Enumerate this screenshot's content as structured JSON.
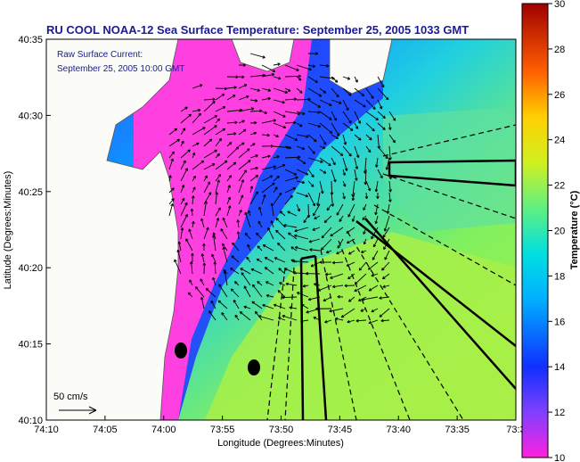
{
  "title": "RU COOL  NOAA-12  Sea Surface Temperature:  September 25, 2005 1033 GMT",
  "annotation": {
    "line1": "Raw Surface Current:",
    "line2": "September 25, 2005 10:00 GMT"
  },
  "scale": {
    "label": "50 cm/s"
  },
  "x_axis": {
    "label": "Longitude (Degrees:Minutes)",
    "ticks": [
      "74:10",
      "74:05",
      "74:00",
      "73:55",
      "73:50",
      "73:45",
      "73:40",
      "73:35",
      "73:3"
    ]
  },
  "y_axis": {
    "label": "Latitude (Degrees:Minutes)",
    "ticks": [
      "40:35",
      "40:30",
      "40:25",
      "40:20",
      "40:15",
      "40:10"
    ]
  },
  "colorbar": {
    "label": "Temperature (°C)",
    "ticks": [
      "30",
      "28",
      "26",
      "24",
      "22",
      "20",
      "18",
      "16",
      "14",
      "12",
      "10"
    ]
  },
  "colors": {
    "water_cold": "#ff40e0",
    "water_mid": "#00b0ff",
    "water_warm": "#a0f040",
    "land": "#fbfbf8",
    "title": "#1a1a9a"
  }
}
